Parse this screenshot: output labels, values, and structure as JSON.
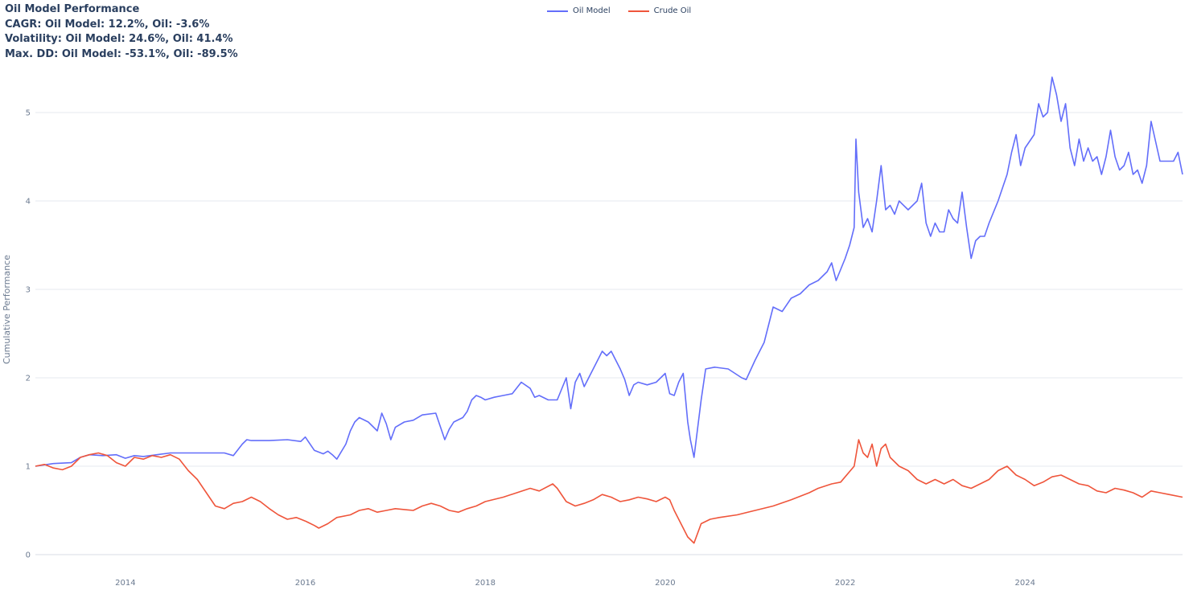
{
  "title": {
    "line1": "Oil Model Performance",
    "line2": "CAGR: Oil Model: 12.2%, Oil: -3.6%",
    "line3": "Volatility: Oil Model: 24.6%, Oil: 41.4%",
    "line4": "Max. DD: Oil Model: -53.1%, Oil: -89.5%"
  },
  "legend": {
    "position": "top-center",
    "items": [
      "Oil Model",
      "Crude Oil"
    ]
  },
  "colors": {
    "oil_model": "#636efa",
    "crude_oil": "#ef553b",
    "grid": "#e6e9ef",
    "axis_text": "#6b7a90"
  },
  "chart_data": {
    "type": "line",
    "title": "Oil Model Performance",
    "xlabel": "",
    "ylabel": "Cumulative Performance",
    "xlim": [
      2013.0,
      2025.75
    ],
    "ylim": [
      0,
      5.5
    ],
    "x_ticks": [
      "2014",
      "2016",
      "2018",
      "2020",
      "2022",
      "2024"
    ],
    "y_ticks": [
      "0",
      "1",
      "2",
      "3",
      "4",
      "5"
    ],
    "grid": true,
    "series": [
      {
        "name": "Oil Model",
        "color": "#636efa",
        "x": [
          2013.0,
          2013.2,
          2013.4,
          2013.5,
          2013.6,
          2013.75,
          2013.9,
          2014.0,
          2014.1,
          2014.2,
          2014.35,
          2014.5,
          2014.7,
          2014.9,
          2015.1,
          2015.2,
          2015.3,
          2015.35,
          2015.4,
          2015.6,
          2015.8,
          2015.95,
          2016.0,
          2016.1,
          2016.2,
          2016.25,
          2016.3,
          2016.35,
          2016.45,
          2016.5,
          2016.55,
          2016.6,
          2016.7,
          2016.8,
          2016.85,
          2016.9,
          2016.95,
          2017.0,
          2017.1,
          2017.2,
          2017.3,
          2017.45,
          2017.5,
          2017.55,
          2017.6,
          2017.65,
          2017.75,
          2017.8,
          2017.85,
          2017.9,
          2017.95,
          2018.0,
          2018.1,
          2018.2,
          2018.3,
          2018.4,
          2018.5,
          2018.55,
          2018.6,
          2018.7,
          2018.8,
          2018.9,
          2018.95,
          2019.0,
          2019.05,
          2019.1,
          2019.2,
          2019.25,
          2019.3,
          2019.35,
          2019.4,
          2019.45,
          2019.5,
          2019.55,
          2019.6,
          2019.65,
          2019.7,
          2019.8,
          2019.9,
          2020.0,
          2020.05,
          2020.1,
          2020.15,
          2020.2,
          2020.25,
          2020.28,
          2020.32,
          2020.4,
          2020.45,
          2020.55,
          2020.7,
          2020.85,
          2020.9,
          2021.0,
          2021.1,
          2021.15,
          2021.2,
          2021.3,
          2021.4,
          2021.5,
          2021.6,
          2021.7,
          2021.8,
          2021.85,
          2021.9,
          2022.0,
          2022.05,
          2022.1,
          2022.12,
          2022.15,
          2022.2,
          2022.25,
          2022.3,
          2022.35,
          2022.4,
          2022.45,
          2022.5,
          2022.55,
          2022.6,
          2022.7,
          2022.75,
          2022.8,
          2022.85,
          2022.9,
          2022.95,
          2023.0,
          2023.05,
          2023.1,
          2023.15,
          2023.2,
          2023.25,
          2023.3,
          2023.35,
          2023.4,
          2023.45,
          2023.5,
          2023.55,
          2023.6,
          2023.7,
          2023.8,
          2023.85,
          2023.9,
          2023.95,
          2024.0,
          2024.1,
          2024.15,
          2024.2,
          2024.25,
          2024.3,
          2024.35,
          2024.4,
          2024.45,
          2024.5,
          2024.55,
          2024.6,
          2024.65,
          2024.7,
          2024.75,
          2024.8,
          2024.85,
          2024.9,
          2024.95,
          2025.0,
          2025.05,
          2025.1,
          2025.15,
          2025.2,
          2025.25,
          2025.3,
          2025.35,
          2025.4,
          2025.5,
          2025.6,
          2025.65,
          2025.7,
          2025.75
        ],
        "y": [
          1.0,
          1.03,
          1.04,
          1.1,
          1.13,
          1.12,
          1.13,
          1.09,
          1.12,
          1.11,
          1.13,
          1.15,
          1.15,
          1.15,
          1.15,
          1.12,
          1.25,
          1.3,
          1.29,
          1.29,
          1.3,
          1.28,
          1.33,
          1.18,
          1.14,
          1.17,
          1.13,
          1.08,
          1.25,
          1.4,
          1.5,
          1.55,
          1.5,
          1.4,
          1.6,
          1.48,
          1.3,
          1.44,
          1.5,
          1.52,
          1.58,
          1.6,
          1.45,
          1.3,
          1.42,
          1.5,
          1.55,
          1.62,
          1.75,
          1.8,
          1.78,
          1.75,
          1.78,
          1.8,
          1.82,
          1.95,
          1.88,
          1.78,
          1.8,
          1.75,
          1.75,
          2.0,
          1.65,
          1.95,
          2.05,
          1.9,
          2.1,
          2.2,
          2.3,
          2.25,
          2.3,
          2.2,
          2.1,
          1.98,
          1.8,
          1.92,
          1.95,
          1.92,
          1.95,
          2.05,
          1.82,
          1.8,
          1.95,
          2.05,
          1.5,
          1.3,
          1.1,
          1.75,
          2.1,
          2.12,
          2.1,
          2.0,
          1.98,
          2.2,
          2.4,
          2.6,
          2.8,
          2.75,
          2.9,
          2.95,
          3.05,
          3.1,
          3.2,
          3.3,
          3.1,
          3.35,
          3.5,
          3.7,
          4.7,
          4.1,
          3.7,
          3.8,
          3.65,
          4.0,
          4.4,
          3.9,
          3.95,
          3.85,
          4.0,
          3.9,
          3.95,
          4.0,
          4.2,
          3.75,
          3.6,
          3.75,
          3.65,
          3.65,
          3.9,
          3.8,
          3.75,
          4.1,
          3.7,
          3.35,
          3.55,
          3.6,
          3.6,
          3.75,
          4.0,
          4.3,
          4.55,
          4.75,
          4.4,
          4.6,
          4.75,
          5.1,
          4.95,
          5.0,
          5.4,
          5.2,
          4.9,
          5.1,
          4.6,
          4.4,
          4.7,
          4.45,
          4.6,
          4.45,
          4.5,
          4.3,
          4.5,
          4.8,
          4.5,
          4.35,
          4.4,
          4.55,
          4.3,
          4.35,
          4.2,
          4.4,
          4.9,
          4.45,
          4.45,
          4.45,
          4.55,
          4.3
        ]
      },
      {
        "name": "Crude Oil",
        "color": "#ef553b",
        "x": [
          2013.0,
          2013.1,
          2013.2,
          2013.3,
          2013.4,
          2013.5,
          2013.6,
          2013.7,
          2013.8,
          2013.9,
          2014.0,
          2014.1,
          2014.2,
          2014.3,
          2014.4,
          2014.5,
          2014.6,
          2014.7,
          2014.8,
          2014.9,
          2015.0,
          2015.1,
          2015.2,
          2015.3,
          2015.4,
          2015.5,
          2015.6,
          2015.7,
          2015.8,
          2015.9,
          2016.0,
          2016.1,
          2016.15,
          2016.25,
          2016.35,
          2016.5,
          2016.6,
          2016.7,
          2016.8,
          2016.9,
          2017.0,
          2017.2,
          2017.3,
          2017.4,
          2017.5,
          2017.6,
          2017.7,
          2017.8,
          2017.9,
          2018.0,
          2018.2,
          2018.35,
          2018.5,
          2018.6,
          2018.75,
          2018.8,
          2018.9,
          2019.0,
          2019.1,
          2019.2,
          2019.3,
          2019.4,
          2019.5,
          2019.6,
          2019.7,
          2019.8,
          2019.9,
          2020.0,
          2020.05,
          2020.1,
          2020.15,
          2020.2,
          2020.25,
          2020.3,
          2020.32,
          2020.4,
          2020.5,
          2020.6,
          2020.8,
          2021.0,
          2021.2,
          2021.4,
          2021.6,
          2021.7,
          2021.85,
          2021.95,
          2022.0,
          2022.1,
          2022.15,
          2022.2,
          2022.25,
          2022.3,
          2022.35,
          2022.4,
          2022.45,
          2022.5,
          2022.6,
          2022.7,
          2022.8,
          2022.9,
          2023.0,
          2023.1,
          2023.2,
          2023.3,
          2023.4,
          2023.5,
          2023.6,
          2023.7,
          2023.8,
          2023.9,
          2024.0,
          2024.1,
          2024.2,
          2024.3,
          2024.4,
          2024.5,
          2024.6,
          2024.7,
          2024.8,
          2024.9,
          2025.0,
          2025.1,
          2025.2,
          2025.3,
          2025.4,
          2025.5,
          2025.6,
          2025.75
        ],
        "y": [
          1.0,
          1.02,
          0.98,
          0.96,
          1.0,
          1.1,
          1.13,
          1.15,
          1.12,
          1.04,
          1.0,
          1.1,
          1.08,
          1.12,
          1.1,
          1.13,
          1.08,
          0.95,
          0.85,
          0.7,
          0.55,
          0.52,
          0.58,
          0.6,
          0.65,
          0.6,
          0.52,
          0.45,
          0.4,
          0.42,
          0.38,
          0.33,
          0.3,
          0.35,
          0.42,
          0.45,
          0.5,
          0.52,
          0.48,
          0.5,
          0.52,
          0.5,
          0.55,
          0.58,
          0.55,
          0.5,
          0.48,
          0.52,
          0.55,
          0.6,
          0.65,
          0.7,
          0.75,
          0.72,
          0.8,
          0.75,
          0.6,
          0.55,
          0.58,
          0.62,
          0.68,
          0.65,
          0.6,
          0.62,
          0.65,
          0.63,
          0.6,
          0.65,
          0.62,
          0.5,
          0.4,
          0.3,
          0.2,
          0.15,
          0.13,
          0.35,
          0.4,
          0.42,
          0.45,
          0.5,
          0.55,
          0.62,
          0.7,
          0.75,
          0.8,
          0.82,
          0.88,
          1.0,
          1.3,
          1.15,
          1.1,
          1.25,
          1.0,
          1.2,
          1.25,
          1.1,
          1.0,
          0.95,
          0.85,
          0.8,
          0.85,
          0.8,
          0.85,
          0.78,
          0.75,
          0.8,
          0.85,
          0.95,
          1.0,
          0.9,
          0.85,
          0.78,
          0.82,
          0.88,
          0.9,
          0.85,
          0.8,
          0.78,
          0.72,
          0.7,
          0.75,
          0.73,
          0.7,
          0.65,
          0.72,
          0.7,
          0.68,
          0.65
        ]
      }
    ]
  }
}
